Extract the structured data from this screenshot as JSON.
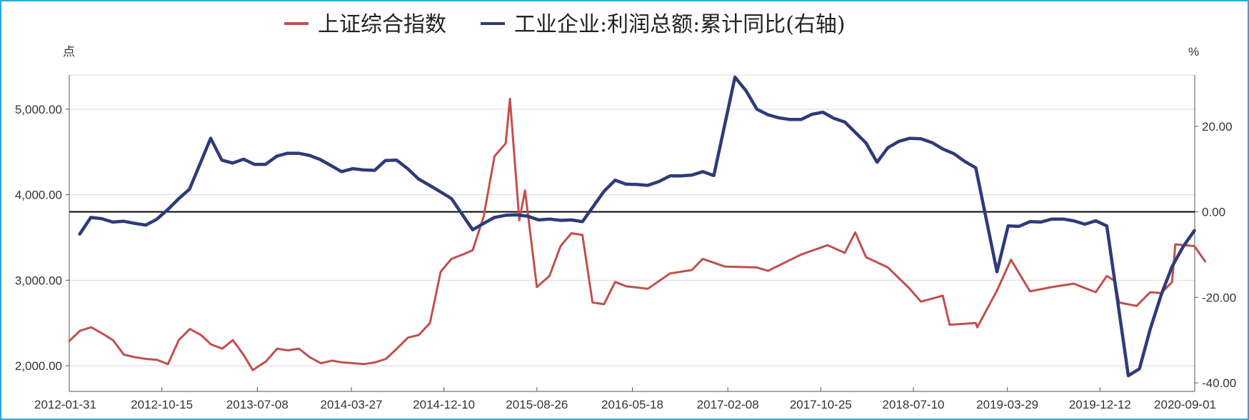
{
  "chart_data": {
    "type": "line",
    "title": "",
    "left_unit": "点",
    "right_unit": "%",
    "ylim_left": [
      1700,
      5400
    ],
    "ylim_right": [
      -42,
      32
    ],
    "left_ticks": [
      "2,000.00",
      "3,000.00",
      "4,000.00",
      "5,000.00"
    ],
    "left_tick_values": [
      2000,
      3000,
      4000,
      5000
    ],
    "right_ticks": [
      "-40.00",
      "-20.00",
      "0.00",
      "20.00"
    ],
    "right_tick_values": [
      -40,
      -20,
      0,
      20
    ],
    "x_tick_labels": [
      "2012-01-31",
      "2012-10-15",
      "2013-07-08",
      "2014-03-27",
      "2014-12-10",
      "2015-08-26",
      "2016-05-18",
      "2017-02-08",
      "2017-10-25",
      "2018-07-10",
      "2019-03-29",
      "2019-12-12",
      "2020-09-01"
    ],
    "grid": "horizontal",
    "legend_position": "top-center",
    "series": [
      {
        "name": "上证综合指数",
        "color": "#c0504d",
        "axis": "left",
        "x": [
          "2012-01-31",
          "2012-03-01",
          "2012-04-01",
          "2012-05-01",
          "2012-06-01",
          "2012-07-01",
          "2012-08-01",
          "2012-09-01",
          "2012-10-01",
          "2012-11-01",
          "2012-12-01",
          "2013-01-01",
          "2013-02-01",
          "2013-03-01",
          "2013-04-01",
          "2013-05-01",
          "2013-06-01",
          "2013-06-25",
          "2013-08-01",
          "2013-09-01",
          "2013-10-01",
          "2013-11-01",
          "2013-12-01",
          "2014-01-01",
          "2014-02-01",
          "2014-03-01",
          "2014-04-01",
          "2014-05-01",
          "2014-06-01",
          "2014-07-01",
          "2014-08-01",
          "2014-09-01",
          "2014-10-01",
          "2014-11-01",
          "2014-12-01",
          "2014-12-31",
          "2015-01-31",
          "2015-02-28",
          "2015-03-31",
          "2015-04-30",
          "2015-05-31",
          "2015-06-12",
          "2015-07-08",
          "2015-07-24",
          "2015-08-26",
          "2015-09-30",
          "2015-10-31",
          "2015-11-30",
          "2015-12-31",
          "2016-01-28",
          "2016-02-29",
          "2016-03-31",
          "2016-04-30",
          "2016-06-30",
          "2016-08-31",
          "2016-10-31",
          "2016-11-30",
          "2017-01-31",
          "2017-04-30",
          "2017-05-31",
          "2017-08-31",
          "2017-11-13",
          "2017-12-31",
          "2018-01-29",
          "2018-02-28",
          "2018-04-30",
          "2018-06-30",
          "2018-07-31",
          "2018-09-30",
          "2018-10-19",
          "2018-12-31",
          "2019-01-04",
          "2019-02-28",
          "2019-04-08",
          "2019-05-31",
          "2019-07-31",
          "2019-09-30",
          "2019-11-30",
          "2019-12-31",
          "2020-01-23",
          "2020-02-03",
          "2020-03-23",
          "2020-04-30",
          "2020-05-31",
          "2020-06-30",
          "2020-07-09",
          "2020-08-31",
          "2020-09-30"
        ],
        "values": [
          2290,
          2410,
          2450,
          2380,
          2300,
          2130,
          2100,
          2080,
          2070,
          2020,
          2300,
          2430,
          2360,
          2250,
          2200,
          2300,
          2120,
          1950,
          2050,
          2200,
          2180,
          2200,
          2100,
          2030,
          2060,
          2040,
          2030,
          2020,
          2040,
          2080,
          2200,
          2330,
          2360,
          2500,
          3100,
          3250,
          3300,
          3350,
          3750,
          4450,
          4600,
          5120,
          3700,
          4050,
          2920,
          3050,
          3400,
          3550,
          3530,
          2740,
          2720,
          2980,
          2930,
          2900,
          3080,
          3120,
          3250,
          3160,
          3150,
          3110,
          3300,
          3410,
          3320,
          3560,
          3270,
          3150,
          2900,
          2750,
          2820,
          2480,
          2500,
          2450,
          2880,
          3240,
          2870,
          2920,
          2960,
          2860,
          3050,
          2990,
          2740,
          2700,
          2860,
          2850,
          2980,
          3420,
          3400,
          3220
        ]
      },
      {
        "name": "工业企业:利润总额:累计同比(右轴)",
        "color": "#2e3b78",
        "axis": "right",
        "x": [
          "2012-02-29",
          "2012-03-31",
          "2012-04-30",
          "2012-05-31",
          "2012-06-30",
          "2012-07-31",
          "2012-08-31",
          "2012-09-30",
          "2012-10-31",
          "2012-11-30",
          "2012-12-31",
          "2013-02-28",
          "2013-03-31",
          "2013-04-30",
          "2013-05-31",
          "2013-06-30",
          "2013-07-31",
          "2013-08-31",
          "2013-09-30",
          "2013-10-31",
          "2013-11-30",
          "2013-12-31",
          "2014-02-28",
          "2014-03-31",
          "2014-04-30",
          "2014-05-31",
          "2014-06-30",
          "2014-07-31",
          "2014-08-31",
          "2014-09-30",
          "2014-10-31",
          "2014-11-30",
          "2014-12-31",
          "2015-02-28",
          "2015-03-31",
          "2015-04-30",
          "2015-05-31",
          "2015-06-30",
          "2015-07-31",
          "2015-08-31",
          "2015-09-30",
          "2015-10-31",
          "2015-11-30",
          "2015-12-31",
          "2016-02-29",
          "2016-03-31",
          "2016-04-30",
          "2016-05-31",
          "2016-06-30",
          "2016-07-31",
          "2016-08-31",
          "2016-09-30",
          "2016-10-31",
          "2016-11-30",
          "2016-12-31",
          "2017-02-28",
          "2017-03-31",
          "2017-04-30",
          "2017-05-31",
          "2017-06-30",
          "2017-07-31",
          "2017-08-31",
          "2017-09-30",
          "2017-10-31",
          "2017-11-30",
          "2017-12-31",
          "2018-02-28",
          "2018-03-31",
          "2018-04-30",
          "2018-05-31",
          "2018-06-30",
          "2018-07-31",
          "2018-08-31",
          "2018-09-30",
          "2018-10-31",
          "2018-11-30",
          "2018-12-31",
          "2019-02-28",
          "2019-03-31",
          "2019-04-30",
          "2019-05-31",
          "2019-06-30",
          "2019-07-31",
          "2019-08-31",
          "2019-09-30",
          "2019-10-31",
          "2019-11-30",
          "2019-12-31",
          "2020-02-29",
          "2020-03-31",
          "2020-04-30",
          "2020-05-31",
          "2020-06-30",
          "2020-07-31",
          "2020-08-31"
        ],
        "values": [
          -5.2,
          -1.3,
          -1.6,
          -2.4,
          -2.2,
          -2.7,
          -3.1,
          -1.8,
          0.5,
          3.0,
          5.3,
          17.2,
          12.1,
          11.4,
          12.3,
          11.1,
          11.1,
          13.0,
          13.7,
          13.7,
          13.2,
          12.2,
          9.4,
          10.1,
          9.8,
          9.7,
          12.0,
          12.1,
          10.1,
          7.7,
          6.2,
          4.7,
          3.1,
          -4.2,
          -2.7,
          -1.3,
          -0.8,
          -0.7,
          -1.0,
          -1.9,
          -1.7,
          -2.0,
          -1.9,
          -2.3,
          4.8,
          7.4,
          6.5,
          6.4,
          6.2,
          7.1,
          8.4,
          8.4,
          8.6,
          9.4,
          8.5,
          31.5,
          28.3,
          24.0,
          22.7,
          22.0,
          21.6,
          21.6,
          22.8,
          23.3,
          21.9,
          21.0,
          16.1,
          11.6,
          15.0,
          16.5,
          17.2,
          17.1,
          16.2,
          14.7,
          13.6,
          11.8,
          10.3,
          -14.0,
          -3.3,
          -3.4,
          -2.3,
          -2.4,
          -1.7,
          -1.7,
          -2.1,
          -2.9,
          -2.1,
          -3.3,
          -38.3,
          -36.7,
          -27.4,
          -19.3,
          -12.8,
          -8.1,
          -4.4
        ]
      }
    ]
  }
}
